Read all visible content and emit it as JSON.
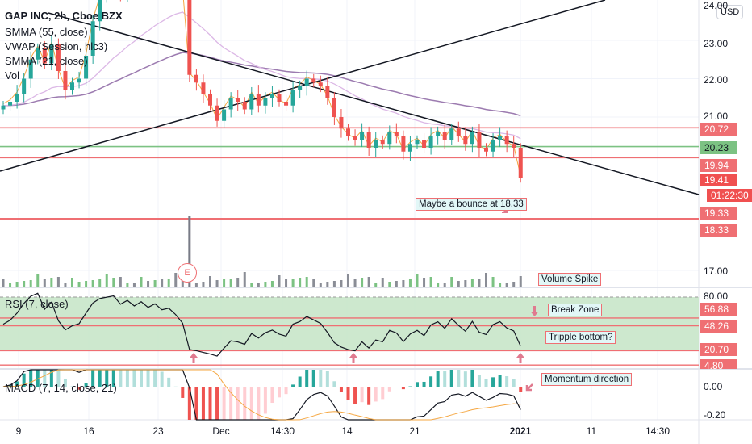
{
  "legend": {
    "symbol": "GAP INC, 2h, Cboe BZX",
    "indicators": [
      "SMMA (55, close)",
      "VWAP (Session, hlc3)",
      "SMMA (21, close)",
      "Vol"
    ],
    "rsi": "RSI (7, close)",
    "macd": "MACD (7, 14, close, 21)"
  },
  "currency": "USD",
  "price_axis": [
    "24.00",
    "23.00",
    "22.00",
    "21.00",
    "17.00"
  ],
  "price_tags": [
    {
      "label": "20.72",
      "style": "red"
    },
    {
      "label": "20.23",
      "style": "green"
    },
    {
      "label": "19.94",
      "style": "red"
    },
    {
      "label": "19.41",
      "style": "dark"
    },
    {
      "label": "01:22:30",
      "style": "dark"
    },
    {
      "label": "19.33",
      "style": "red"
    },
    {
      "label": "18.33",
      "style": "red"
    }
  ],
  "rsi_axis": [
    "80.00"
  ],
  "rsi_tags": [
    "56.88",
    "48.26",
    "20.70",
    "4.80"
  ],
  "macd_axis": [
    "0.00",
    "-0.20"
  ],
  "time_axis": [
    {
      "label": "9",
      "bold": false
    },
    {
      "label": "16",
      "bold": false
    },
    {
      "label": "23",
      "bold": false
    },
    {
      "label": "Dec",
      "bold": false
    },
    {
      "label": "14:30",
      "bold": false
    },
    {
      "label": "14",
      "bold": false
    },
    {
      "label": "21",
      "bold": false
    },
    {
      "label": "2021",
      "bold": true
    },
    {
      "label": "11",
      "bold": false
    },
    {
      "label": "14:30",
      "bold": false
    }
  ],
  "annotations": {
    "bounce": "Maybe a bounce at 18.33",
    "volume": "Volume Spike",
    "break": "Break Zone",
    "triple": "Tripple bottom?",
    "momentum": "Momentum direction",
    "earnings": "E"
  },
  "colors": {
    "up": "#26a69a",
    "down": "#ef5350",
    "level": "#ef6f73",
    "support": "#7cc283",
    "smma55": "#9c7bb0",
    "vwap": "#f5a742",
    "rsi_band": "#c8e6c9"
  },
  "chart_data": {
    "type": "candlestick",
    "closes": [
      21.3,
      21.4,
      21.6,
      22.0,
      22.5,
      22.8,
      22.4,
      22.9,
      22.2,
      21.7,
      21.9,
      22.0,
      22.6,
      23.5,
      24.1,
      24.3,
      24.5,
      24.2,
      24.6,
      24.4,
      24.8,
      24.6,
      24.9,
      24.7,
      24.8,
      24.6,
      24.3,
      22.1,
      21.9,
      21.6,
      21.3,
      20.9,
      21.2,
      21.5,
      21.4,
      21.2,
      21.6,
      21.3,
      21.5,
      21.6,
      21.4,
      21.3,
      21.7,
      21.8,
      22.0,
      21.9,
      21.8,
      21.5,
      21.0,
      20.7,
      20.5,
      20.4,
      20.6,
      20.2,
      20.4,
      20.3,
      20.6,
      20.5,
      20.1,
      20.3,
      20.4,
      20.2,
      20.5,
      20.6,
      20.4,
      20.7,
      20.5,
      20.3,
      20.6,
      20.2,
      20.1,
      20.4,
      20.5,
      20.3,
      20.2,
      19.41
    ],
    "horizontal_levels": [
      20.72,
      20.23,
      19.94,
      19.41,
      19.33,
      18.33
    ],
    "rsi_levels": [
      56.88,
      48.26,
      20.7,
      4.8
    ],
    "rsi_band": [
      20.7,
      80.0
    ],
    "price_range": [
      16.8,
      24.1
    ],
    "grid": true
  }
}
